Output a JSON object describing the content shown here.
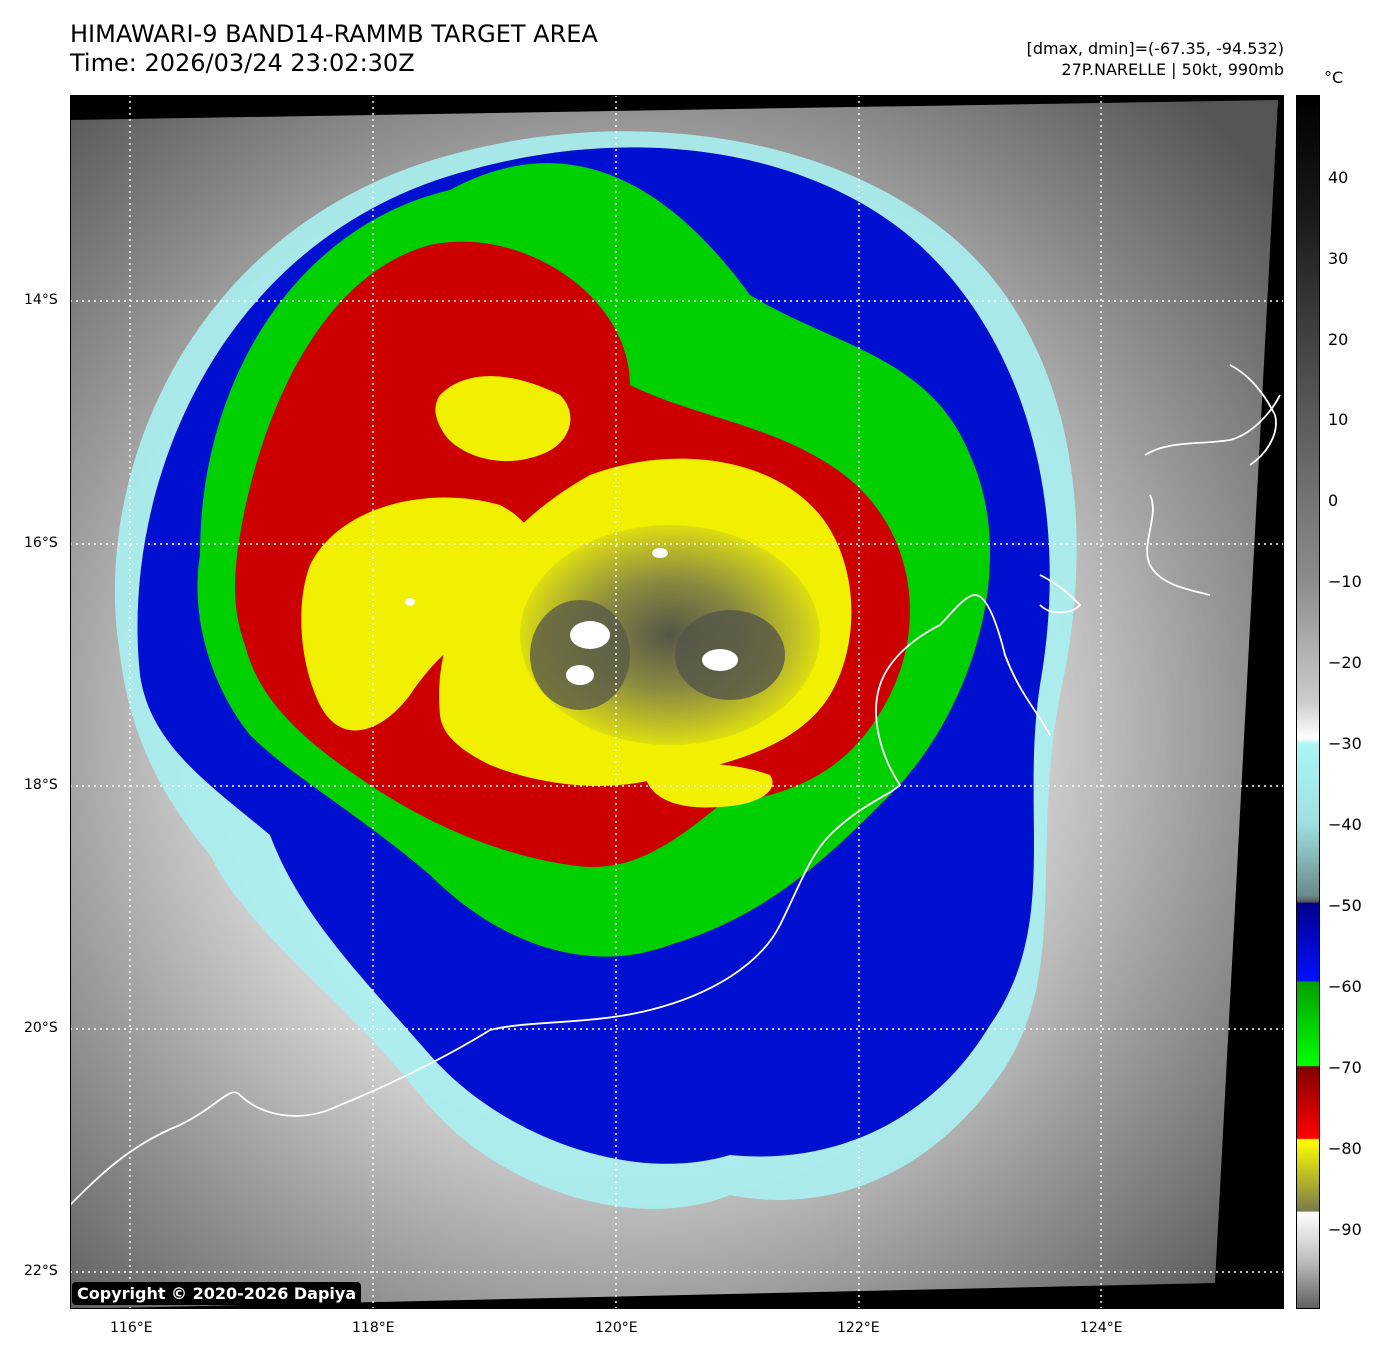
{
  "header": {
    "title_line1": "HIMAWARI-9 BAND14-RAMMB TARGET AREA",
    "title_line2": "Time: 2026/03/24 23:02:30Z",
    "range_info": "[dmax, dmin]=(-67.35, -94.532)",
    "storm_info": "27P.NARELLE | 50kt, 990mb"
  },
  "colorbar": {
    "unit": "°C",
    "ticks": [
      "40",
      "30",
      "20",
      "10",
      "0",
      "−10",
      "−20",
      "−30",
      "−40",
      "−50",
      "−60",
      "−70",
      "−80",
      "−90"
    ]
  },
  "axes": {
    "lat_labels": [
      "14°S",
      "16°S",
      "18°S",
      "20°S",
      "22°S"
    ],
    "lon_labels": [
      "116°E",
      "118°E",
      "120°E",
      "122°E",
      "124°E"
    ]
  },
  "colors": {
    "ocean_warm": "#555555",
    "cloud_cold": "#e6e6e6",
    "cyan": "#a8f0f0",
    "blue": "#0010d0",
    "green": "#00d000",
    "red": "#cc0000",
    "yellow": "#f0f000",
    "olive": "#8c8c3c",
    "coast": "#ffffff"
  },
  "footer": {
    "copyright": "Copyright © 2020-2026 Dapiya"
  }
}
